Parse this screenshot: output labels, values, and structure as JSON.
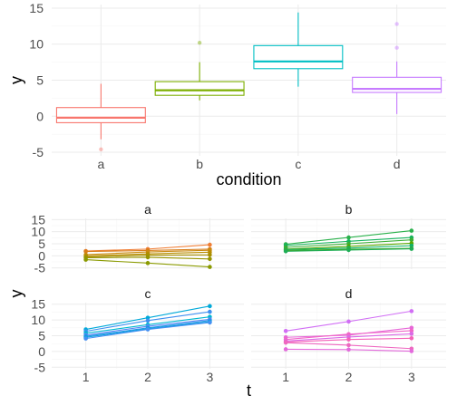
{
  "colors": {
    "a": "#F8766D",
    "b": "#7CAE00",
    "c": "#00BFC4",
    "d": "#C77CFF"
  },
  "chart_data": [
    {
      "type": "box",
      "title": "",
      "xlabel": "condition",
      "ylabel": "y",
      "categories": [
        "a",
        "b",
        "c",
        "d"
      ],
      "ylim": [
        -5.5,
        15.5
      ],
      "yticks": [
        -5,
        0,
        5,
        10,
        15
      ],
      "grid": true,
      "boxes": [
        {
          "category": "a",
          "whisker_low": -3.2,
          "q1": -0.9,
          "median": -0.2,
          "q3": 1.2,
          "whisker_high": 4.5,
          "outliers": [
            -4.6
          ]
        },
        {
          "category": "b",
          "whisker_low": 2.2,
          "q1": 2.9,
          "median": 3.6,
          "q3": 4.8,
          "whisker_high": 7.5,
          "outliers": [
            10.2
          ]
        },
        {
          "category": "c",
          "whisker_low": 4.1,
          "q1": 6.6,
          "median": 7.6,
          "q3": 9.8,
          "whisker_high": 14.4,
          "outliers": []
        },
        {
          "category": "d",
          "whisker_low": 0.3,
          "q1": 3.3,
          "median": 3.8,
          "q3": 5.4,
          "whisker_high": 7.6,
          "outliers": [
            9.5,
            12.8
          ]
        }
      ]
    },
    {
      "type": "line",
      "facets": [
        "a",
        "b",
        "c",
        "d"
      ],
      "xlabel": "t",
      "ylabel": "y",
      "x": [
        1,
        2,
        3
      ],
      "xticks": [
        1,
        2,
        3
      ],
      "ylim": [
        -5.5,
        15.5
      ],
      "yticks": [
        -5,
        0,
        5,
        10,
        15
      ],
      "grid": true,
      "panels": [
        {
          "facet": "a",
          "series": [
            {
              "color": "#F07E35",
              "values": [
                2.0,
                2.8,
                4.6
              ]
            },
            {
              "color": "#D87C19",
              "values": [
                1.8,
                2.2,
                2.8
              ]
            },
            {
              "color": "#C98A10",
              "values": [
                0.5,
                1.6,
                2.3
              ]
            },
            {
              "color": "#B88C00",
              "values": [
                0.0,
                0.8,
                1.5
              ]
            },
            {
              "color": "#A88F00",
              "values": [
                -0.5,
                0.3,
                0.4
              ]
            },
            {
              "color": "#969400",
              "values": [
                -0.8,
                -0.6,
                -1.3
              ]
            },
            {
              "color": "#8A9A00",
              "values": [
                -1.6,
                -3.0,
                -4.6
              ]
            }
          ]
        },
        {
          "facet": "b",
          "series": [
            {
              "color": "#2AB14B",
              "values": [
                4.8,
                7.6,
                10.4
              ]
            },
            {
              "color": "#15B35C",
              "values": [
                4.3,
                6.0,
                7.6
              ]
            },
            {
              "color": "#3BAE34",
              "values": [
                3.5,
                5.0,
                6.6
              ]
            },
            {
              "color": "#58A800",
              "values": [
                2.8,
                3.9,
                5.2
              ]
            },
            {
              "color": "#0FB26A",
              "values": [
                2.6,
                3.2,
                4.2
              ]
            },
            {
              "color": "#48A820",
              "values": [
                2.2,
                2.7,
                3.1
              ]
            },
            {
              "color": "#1EAD55",
              "values": [
                1.9,
                2.4,
                2.9
              ]
            }
          ]
        },
        {
          "facet": "c",
          "series": [
            {
              "color": "#00A9D9",
              "values": [
                7.0,
                10.7,
                14.4
              ]
            },
            {
              "color": "#3E8FF0",
              "values": [
                6.4,
                9.8,
                12.6
              ]
            },
            {
              "color": "#00B8D0",
              "values": [
                5.8,
                8.5,
                11.0
              ]
            },
            {
              "color": "#5A86F5",
              "values": [
                5.2,
                8.0,
                10.2
              ]
            },
            {
              "color": "#2196E6",
              "values": [
                4.8,
                7.5,
                9.8
              ]
            },
            {
              "color": "#0CA1DF",
              "values": [
                4.5,
                7.2,
                9.4
              ]
            },
            {
              "color": "#4690F2",
              "values": [
                4.1,
                7.0,
                9.2
              ]
            }
          ]
        },
        {
          "facet": "d",
          "series": [
            {
              "color": "#D16EF5",
              "values": [
                6.5,
                9.5,
                12.8
              ]
            },
            {
              "color": "#E766D8",
              "values": [
                4.5,
                5.2,
                7.5
              ]
            },
            {
              "color": "#F066C8",
              "values": [
                3.8,
                5.5,
                6.6
              ]
            },
            {
              "color": "#DA6AE6",
              "values": [
                3.3,
                4.6,
                5.6
              ]
            },
            {
              "color": "#F562B8",
              "values": [
                3.0,
                3.8,
                4.2
              ]
            },
            {
              "color": "#EE68C0",
              "values": [
                2.8,
                2.0,
                0.9
              ]
            },
            {
              "color": "#E36ADC",
              "values": [
                0.7,
                0.6,
                0.1
              ]
            }
          ]
        }
      ]
    }
  ]
}
